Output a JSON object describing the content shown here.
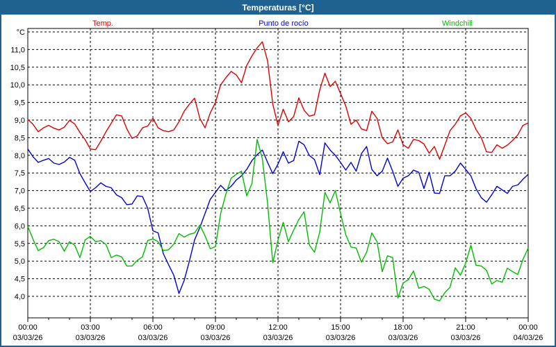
{
  "window": {
    "title": "Temperaturas [°C]"
  },
  "legend": {
    "items": [
      {
        "label": "Temp.",
        "color": "#dd0000"
      },
      {
        "label": "Punto de rocío",
        "color": "#0000cd"
      },
      {
        "label": "Windchill",
        "color": "#00bb00"
      }
    ]
  },
  "chart_data": {
    "type": "line",
    "title": "Temperaturas [°C]",
    "grid": "dashed",
    "legend_position": "top",
    "y_axis": {
      "unit": "°C",
      "min": 3.4,
      "max": 11.6,
      "tick_step": 0.5,
      "label_min": 4.0,
      "label_max": 11.0,
      "gridline_top_value": 11.5,
      "decimal_separator": ","
    },
    "x_axis": {
      "start_hour": 0,
      "end_hour": 24,
      "major_tick_hours": 3,
      "minor_tick_hours": 1,
      "tick_labels": [
        {
          "time": "00:00",
          "date": "03/03/26"
        },
        {
          "time": "03:00",
          "date": "03/03/26"
        },
        {
          "time": "06:00",
          "date": "03/03/26"
        },
        {
          "time": "09:00",
          "date": "03/03/26"
        },
        {
          "time": "12:00",
          "date": "03/03/26"
        },
        {
          "time": "15:00",
          "date": "03/03/26"
        },
        {
          "time": "18:00",
          "date": "03/03/26"
        },
        {
          "time": "21:00",
          "date": "03/03/26"
        },
        {
          "time": "00:00",
          "date": "04/03/26"
        }
      ]
    },
    "sample_step_hours": 0.25,
    "series": [
      {
        "name": "Temp.",
        "color": "#dd0000",
        "values": [
          9.02,
          8.88,
          8.67,
          8.78,
          8.85,
          8.77,
          8.72,
          8.8,
          8.99,
          8.89,
          8.65,
          8.44,
          8.18,
          8.16,
          8.4,
          8.67,
          8.91,
          9.15,
          9.12,
          8.75,
          8.48,
          8.55,
          8.78,
          8.83,
          9.05,
          8.78,
          8.7,
          8.67,
          8.72,
          8.95,
          9.25,
          9.45,
          9.62,
          9.05,
          8.78,
          9.2,
          9.5,
          10.0,
          10.2,
          10.38,
          10.28,
          10.06,
          10.55,
          10.82,
          11.05,
          11.22,
          10.68,
          9.45,
          8.85,
          9.31,
          8.95,
          9.1,
          9.63,
          9.28,
          9.11,
          9.15,
          9.85,
          10.33,
          9.95,
          10.1,
          9.75,
          9.4,
          8.88,
          9.0,
          8.75,
          8.7,
          9.25,
          9.05,
          8.5,
          8.33,
          8.38,
          8.72,
          8.3,
          8.2,
          8.45,
          8.42,
          8.32,
          8.06,
          8.25,
          7.89,
          8.29,
          8.7,
          8.88,
          9.12,
          9.2,
          9.05,
          8.73,
          8.5,
          8.1,
          8.08,
          8.3,
          8.2,
          8.29,
          8.42,
          8.58,
          8.85,
          8.92
        ]
      },
      {
        "name": "Punto de rocío",
        "color": "#0000cd",
        "values": [
          8.18,
          7.96,
          7.8,
          7.86,
          7.91,
          7.78,
          7.74,
          7.81,
          7.94,
          7.86,
          7.48,
          7.22,
          6.97,
          7.08,
          7.22,
          7.12,
          7.08,
          6.88,
          6.8,
          6.6,
          6.62,
          6.85,
          6.83,
          6.5,
          5.86,
          5.8,
          5.21,
          4.9,
          4.6,
          4.08,
          4.45,
          5.0,
          5.6,
          5.95,
          6.35,
          6.75,
          6.95,
          7.15,
          7.0,
          7.12,
          7.3,
          7.42,
          7.6,
          7.85,
          8.02,
          8.15,
          7.8,
          7.48,
          7.75,
          8.1,
          7.78,
          7.85,
          8.4,
          8.3,
          8.0,
          7.88,
          7.45,
          8.35,
          8.15,
          8.0,
          7.8,
          7.58,
          7.8,
          7.55,
          8.05,
          8.25,
          7.6,
          7.42,
          7.55,
          7.92,
          7.55,
          7.12,
          7.35,
          7.42,
          7.58,
          7.52,
          7.06,
          7.52,
          6.93,
          6.92,
          7.42,
          7.42,
          7.55,
          7.78,
          7.6,
          7.42,
          7.05,
          6.8,
          6.67,
          6.88,
          7.12,
          7.02,
          6.92,
          7.12,
          7.16,
          7.32,
          7.46
        ]
      },
      {
        "name": "Windchill",
        "color": "#00bb00",
        "values": [
          5.98,
          5.62,
          5.3,
          5.38,
          5.58,
          5.62,
          5.55,
          5.28,
          5.55,
          5.45,
          5.1,
          5.6,
          5.7,
          5.55,
          5.58,
          5.47,
          5.1,
          5.17,
          5.12,
          4.86,
          4.86,
          5.02,
          5.12,
          5.58,
          5.63,
          5.55,
          5.3,
          5.32,
          5.48,
          5.78,
          5.68,
          5.76,
          5.8,
          6.02,
          5.72,
          5.35,
          5.41,
          6.35,
          6.9,
          7.35,
          7.46,
          7.55,
          6.85,
          7.2,
          8.45,
          7.9,
          6.64,
          4.95,
          5.6,
          6.1,
          5.55,
          5.88,
          6.18,
          6.4,
          5.46,
          5.25,
          5.82,
          6.95,
          6.65,
          7.0,
          6.35,
          5.75,
          5.4,
          5.37,
          4.97,
          5.25,
          5.8,
          5.55,
          4.7,
          5.15,
          5.1,
          3.95,
          4.38,
          4.47,
          4.72,
          4.23,
          4.28,
          4.2,
          3.92,
          3.87,
          4.1,
          4.26,
          4.81,
          4.6,
          4.94,
          5.45,
          4.88,
          4.86,
          4.74,
          4.35,
          4.45,
          4.4,
          4.8,
          4.7,
          4.62,
          5.05,
          5.37
        ]
      }
    ]
  }
}
